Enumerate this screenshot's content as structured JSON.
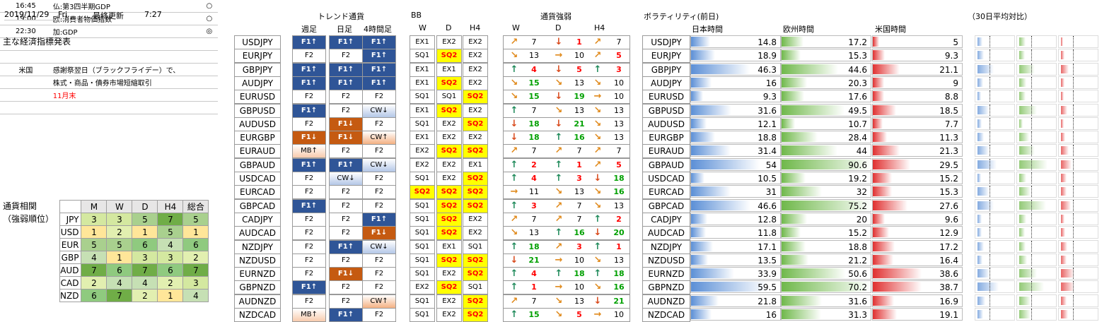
{
  "header": {
    "date": "2019/11/29",
    "weekday": "Fri.",
    "last_update_label": "最終更新",
    "last_update_time": "7:27"
  },
  "calendar": {
    "title": "主な経済指標発表",
    "rows": [
      {
        "time": "16:45",
        "text": "仏:第3四半期GDP",
        "mark": "○"
      },
      {
        "time": "19:00",
        "text": "欧:消費者物価指数",
        "mark": "○"
      },
      {
        "time": "22:30",
        "text": "加:GDP",
        "mark": "◎"
      },
      {
        "time": "",
        "text": "",
        "mark": ""
      },
      {
        "time": "",
        "text": "",
        "mark": ""
      },
      {
        "time": "米国",
        "text": "感謝祭翌日（ブラックフライデー）で、",
        "mark": ""
      },
      {
        "time": "",
        "text": "株式・商品・債券市場短縮取引",
        "mark": ""
      },
      {
        "time": "",
        "text": "11月末",
        "mark": "",
        "red": true
      },
      {
        "time": "",
        "text": "",
        "mark": ""
      }
    ]
  },
  "matrix": {
    "title1": "通貨相関",
    "title2": "（強弱順位）",
    "columns": [
      "M",
      "W",
      "D",
      "H4",
      "総合"
    ],
    "rows": [
      {
        "ccy": "JPY",
        "vals": [
          3,
          3,
          5,
          7,
          5
        ]
      },
      {
        "ccy": "USD",
        "vals": [
          1,
          2,
          1,
          5,
          1
        ]
      },
      {
        "ccy": "EUR",
        "vals": [
          5,
          5,
          6,
          4,
          6
        ]
      },
      {
        "ccy": "GBP",
        "vals": [
          4,
          1,
          3,
          3,
          2
        ]
      },
      {
        "ccy": "AUD",
        "vals": [
          7,
          6,
          7,
          6,
          7
        ]
      },
      {
        "ccy": "CAD",
        "vals": [
          2,
          4,
          4,
          2,
          3
        ]
      },
      {
        "ccy": "NZD",
        "vals": [
          6,
          7,
          2,
          1,
          4
        ]
      }
    ]
  },
  "trend_header": {
    "title": "トレンド通貨",
    "cols": [
      "週足",
      "日足",
      "4時間足"
    ]
  },
  "bb_header": {
    "title": "BB",
    "cols": [
      "W",
      "D",
      "H4"
    ]
  },
  "str_header": {
    "title": "通貨強弱",
    "cols": [
      "W",
      "D",
      "H4"
    ]
  },
  "vol_header": {
    "title": "ボラティリティ(前日)",
    "jp": "日本時間",
    "eu": "欧州時間",
    "us": "米国時間",
    "avg": "（30日平均対比）"
  },
  "rows": [
    {
      "pair": "USDJPY",
      "trend": [
        [
          "F1↑",
          "f1up"
        ],
        [
          "F1↑",
          "f1up"
        ],
        [
          "F1↑",
          "f1up"
        ]
      ],
      "bb": [
        [
          "EX1",
          ""
        ],
        [
          "EX2",
          ""
        ],
        [
          "EX2",
          ""
        ]
      ],
      "str": [
        [
          "↗",
          "o"
        ],
        [
          "7",
          ""
        ],
        [
          "↓",
          "r"
        ],
        [
          "1",
          "r"
        ],
        [
          "↗",
          "o"
        ],
        [
          "7",
          ""
        ]
      ],
      "vol": [
        14.8,
        17.2,
        5.0
      ]
    },
    {
      "pair": "EURJPY",
      "trend": [
        [
          "F2",
          ""
        ],
        [
          "F2",
          ""
        ],
        [
          "F1↑",
          "f1up"
        ]
      ],
      "bb": [
        [
          "SQ1",
          ""
        ],
        [
          "SQ2",
          "sq"
        ],
        [
          "EX2",
          ""
        ]
      ],
      "str": [
        [
          "↘",
          "o"
        ],
        [
          "13",
          ""
        ],
        [
          "→",
          "o"
        ],
        [
          "10",
          ""
        ],
        [
          "↗",
          "o"
        ],
        [
          "5",
          "r"
        ]
      ],
      "vol": [
        18.9,
        15.3,
        9.3
      ]
    },
    {
      "pair": "GBPJPY",
      "trend": [
        [
          "F1↑",
          "f1up"
        ],
        [
          "F1↑",
          "f1up"
        ],
        [
          "F1↑",
          "f1up"
        ]
      ],
      "bb": [
        [
          "EX1",
          ""
        ],
        [
          "EX1",
          ""
        ],
        [
          "EX2",
          ""
        ]
      ],
      "str": [
        [
          "↑",
          "g"
        ],
        [
          "4",
          "r"
        ],
        [
          "↓",
          "r"
        ],
        [
          "5",
          "r"
        ],
        [
          "↑",
          "g"
        ],
        [
          "3",
          "r"
        ]
      ],
      "vol": [
        46.3,
        44.6,
        21.1
      ]
    },
    {
      "pair": "AUDJPY",
      "trend": [
        [
          "F1↑",
          "f1up"
        ],
        [
          "F1↑",
          "f1up"
        ],
        [
          "F1↑",
          "f1up"
        ]
      ],
      "bb": [
        [
          "EX1",
          ""
        ],
        [
          "SQ2",
          "sq"
        ],
        [
          "EX2",
          ""
        ]
      ],
      "str": [
        [
          "↘",
          "o"
        ],
        [
          "15",
          "g"
        ],
        [
          "↘",
          "o"
        ],
        [
          "13",
          ""
        ],
        [
          "↘",
          "o"
        ],
        [
          "10",
          ""
        ]
      ],
      "vol": [
        16.0,
        20.3,
        9.0
      ]
    },
    {
      "pair": "EURUSD",
      "trend": [
        [
          "F2",
          ""
        ],
        [
          "F2",
          ""
        ],
        [
          "F2",
          ""
        ]
      ],
      "bb": [
        [
          "SQ1",
          ""
        ],
        [
          "SQ1",
          ""
        ],
        [
          "SQ2",
          "sq"
        ]
      ],
      "str": [
        [
          "↘",
          "o"
        ],
        [
          "15",
          "g"
        ],
        [
          "↓",
          "r"
        ],
        [
          "19",
          "g"
        ],
        [
          "→",
          "o"
        ],
        [
          "10",
          ""
        ]
      ],
      "vol": [
        9.3,
        17.6,
        8.8
      ]
    },
    {
      "pair": "GBPUSD",
      "trend": [
        [
          "F1↑",
          "f1up"
        ],
        [
          "F2",
          ""
        ],
        [
          "CW↓",
          "cwdn"
        ]
      ],
      "bb": [
        [
          "EX1",
          ""
        ],
        [
          "SQ2",
          "sq"
        ],
        [
          "EX2",
          ""
        ]
      ],
      "str": [
        [
          "↑",
          "g"
        ],
        [
          "7",
          ""
        ],
        [
          "↘",
          "o"
        ],
        [
          "13",
          ""
        ],
        [
          "↘",
          "o"
        ],
        [
          "13",
          ""
        ]
      ],
      "vol": [
        31.6,
        49.5,
        18.5
      ]
    },
    {
      "pair": "AUDUSD",
      "trend": [
        [
          "F2",
          ""
        ],
        [
          "F1↓",
          "f1dn"
        ],
        [
          "F2",
          ""
        ]
      ],
      "bb": [
        [
          "SQ1",
          ""
        ],
        [
          "EX2",
          ""
        ],
        [
          "SQ2",
          "sq"
        ]
      ],
      "str": [
        [
          "↓",
          "r"
        ],
        [
          "18",
          "g"
        ],
        [
          "↓",
          "r"
        ],
        [
          "21",
          "g"
        ],
        [
          "↘",
          "o"
        ],
        [
          "13",
          ""
        ]
      ],
      "vol": [
        12.1,
        10.7,
        7.7
      ]
    },
    {
      "pair": "EURGBP",
      "trend": [
        [
          "F1↓",
          "f1dn"
        ],
        [
          "F1↓",
          "f1dn"
        ],
        [
          "CW↑",
          "cwup"
        ]
      ],
      "bb": [
        [
          "EX1",
          ""
        ],
        [
          "EX2",
          ""
        ],
        [
          "EX2",
          ""
        ]
      ],
      "str": [
        [
          "↓",
          "r"
        ],
        [
          "18",
          "g"
        ],
        [
          "↑",
          "g"
        ],
        [
          "16",
          "g"
        ],
        [
          "↘",
          "o"
        ],
        [
          "13",
          ""
        ]
      ],
      "vol": [
        18.8,
        28.4,
        11.3
      ]
    },
    {
      "pair": "EURAUD",
      "trend": [
        [
          "MB↑",
          "mbup"
        ],
        [
          "F2",
          ""
        ],
        [
          "F2",
          ""
        ]
      ],
      "bb": [
        [
          "EX2",
          ""
        ],
        [
          "SQ2",
          "sq"
        ],
        [
          "SQ2",
          "sq"
        ]
      ],
      "str": [
        [
          "↗",
          "o"
        ],
        [
          "7",
          ""
        ],
        [
          "↗",
          "o"
        ],
        [
          "7",
          ""
        ],
        [
          "↗",
          "o"
        ],
        [
          "7",
          ""
        ]
      ],
      "vol": [
        31.4,
        44.0,
        21.3
      ]
    },
    {
      "pair": "GBPAUD",
      "trend": [
        [
          "F1↑",
          "f1up"
        ],
        [
          "F1↑",
          "f1up"
        ],
        [
          "CW↓",
          "cwdn"
        ]
      ],
      "bb": [
        [
          "EX2",
          ""
        ],
        [
          "EX2",
          ""
        ],
        [
          "EX1",
          ""
        ]
      ],
      "str": [
        [
          "↑",
          "g"
        ],
        [
          "2",
          "r"
        ],
        [
          "↑",
          "g"
        ],
        [
          "1",
          "r"
        ],
        [
          "↗",
          "o"
        ],
        [
          "5",
          "r"
        ]
      ],
      "vol": [
        54.0,
        90.6,
        29.5
      ]
    },
    {
      "pair": "USDCAD",
      "trend": [
        [
          "F2",
          ""
        ],
        [
          "CW↓",
          "cwdn"
        ],
        [
          "F2",
          ""
        ]
      ],
      "bb": [
        [
          "SQ1",
          ""
        ],
        [
          "EX2",
          ""
        ],
        [
          "SQ2",
          "sq"
        ]
      ],
      "str": [
        [
          "↑",
          "g"
        ],
        [
          "4",
          "r"
        ],
        [
          "↑",
          "g"
        ],
        [
          "3",
          "r"
        ],
        [
          "↓",
          "r"
        ],
        [
          "18",
          "g"
        ]
      ],
      "vol": [
        10.5,
        19.2,
        15.2
      ]
    },
    {
      "pair": "EURCAD",
      "trend": [
        [
          "F2",
          ""
        ],
        [
          "F2",
          ""
        ],
        [
          "F2",
          ""
        ]
      ],
      "bb": [
        [
          "SQ2",
          "sq"
        ],
        [
          "SQ2",
          "sq"
        ],
        [
          "SQ2",
          "sq"
        ]
      ],
      "str": [
        [
          "→",
          "o"
        ],
        [
          "11",
          ""
        ],
        [
          "↘",
          "o"
        ],
        [
          "13",
          ""
        ],
        [
          "↘",
          "o"
        ],
        [
          "16",
          "g"
        ]
      ],
      "vol": [
        31.0,
        32.0,
        15.3
      ]
    },
    {
      "pair": "GBPCAD",
      "trend": [
        [
          "F1↑",
          "f1up"
        ],
        [
          "F2",
          ""
        ],
        [
          "F2",
          ""
        ]
      ],
      "bb": [
        [
          "SQ1",
          ""
        ],
        [
          "SQ2",
          "sq"
        ],
        [
          "SQ2",
          "sq"
        ]
      ],
      "str": [
        [
          "↑",
          "g"
        ],
        [
          "3",
          "r"
        ],
        [
          "↗",
          "o"
        ],
        [
          "7",
          ""
        ],
        [
          "↘",
          "o"
        ],
        [
          "13",
          ""
        ]
      ],
      "vol": [
        46.6,
        75.2,
        27.6
      ]
    },
    {
      "pair": "CADJPY",
      "trend": [
        [
          "F2",
          ""
        ],
        [
          "F2",
          ""
        ],
        [
          "F1↑",
          "f1up"
        ]
      ],
      "bb": [
        [
          "SQ1",
          ""
        ],
        [
          "SQ2",
          "sq"
        ],
        [
          "EX2",
          ""
        ]
      ],
      "str": [
        [
          "↗",
          "o"
        ],
        [
          "7",
          ""
        ],
        [
          "↗",
          "o"
        ],
        [
          "7",
          ""
        ],
        [
          "↑",
          "g"
        ],
        [
          "2",
          "r"
        ]
      ],
      "vol": [
        12.8,
        20.0,
        9.6
      ]
    },
    {
      "pair": "AUDCAD",
      "trend": [
        [
          "F2",
          ""
        ],
        [
          "F2",
          ""
        ],
        [
          "F1↓",
          "f1dn"
        ]
      ],
      "bb": [
        [
          "SQ1",
          ""
        ],
        [
          "SQ2",
          "sq"
        ],
        [
          "EX2",
          ""
        ]
      ],
      "str": [
        [
          "↘",
          "o"
        ],
        [
          "13",
          ""
        ],
        [
          "↑",
          "g"
        ],
        [
          "16",
          "g"
        ],
        [
          "↓",
          "r"
        ],
        [
          "20",
          "g"
        ]
      ],
      "vol": [
        11.8,
        15.2,
        12.9
      ]
    },
    {
      "pair": "NZDJPY",
      "trend": [
        [
          "F2",
          ""
        ],
        [
          "F1↑",
          "f1up"
        ],
        [
          "CW↓",
          "cwdn"
        ]
      ],
      "bb": [
        [
          "SQ1",
          ""
        ],
        [
          "EX1",
          ""
        ],
        [
          "SQ1",
          ""
        ]
      ],
      "str": [
        [
          "↑",
          "g"
        ],
        [
          "18",
          "g"
        ],
        [
          "↗",
          "o"
        ],
        [
          "3",
          "r"
        ],
        [
          "↑",
          "g"
        ],
        [
          "1",
          "r"
        ]
      ],
      "vol": [
        17.1,
        18.8,
        17.2
      ]
    },
    {
      "pair": "NZDUSD",
      "trend": [
        [
          "F2",
          ""
        ],
        [
          "F2",
          ""
        ],
        [
          "F2",
          ""
        ]
      ],
      "bb": [
        [
          "SQ1",
          ""
        ],
        [
          "SQ2",
          "sq"
        ],
        [
          "SQ2",
          "sq"
        ]
      ],
      "str": [
        [
          "↓",
          "r"
        ],
        [
          "21",
          "g"
        ],
        [
          "→",
          "o"
        ],
        [
          "10",
          ""
        ],
        [
          "↘",
          "o"
        ],
        [
          "13",
          ""
        ]
      ],
      "vol": [
        13.5,
        21.2,
        16.4
      ]
    },
    {
      "pair": "EURNZD",
      "trend": [
        [
          "F2",
          ""
        ],
        [
          "F1↓",
          "f1dn"
        ],
        [
          "F2",
          ""
        ]
      ],
      "bb": [
        [
          "SQ1",
          ""
        ],
        [
          "EX2",
          ""
        ],
        [
          "SQ2",
          "sq"
        ]
      ],
      "str": [
        [
          "↑",
          "g"
        ],
        [
          "4",
          "r"
        ],
        [
          "↑",
          "g"
        ],
        [
          "18",
          "g"
        ],
        [
          "↑",
          "g"
        ],
        [
          "18",
          "g"
        ]
      ],
      "vol": [
        33.9,
        50.6,
        38.6
      ]
    },
    {
      "pair": "GBPNZD",
      "trend": [
        [
          "F1↑",
          "f1up"
        ],
        [
          "F2",
          ""
        ],
        [
          "F2",
          ""
        ]
      ],
      "bb": [
        [
          "EX2",
          ""
        ],
        [
          "SQ2",
          "sq"
        ],
        [
          "SQ1",
          ""
        ]
      ],
      "str": [
        [
          "↑",
          "g"
        ],
        [
          "1",
          "r"
        ],
        [
          "→",
          "o"
        ],
        [
          "10",
          ""
        ],
        [
          "↘",
          "o"
        ],
        [
          "16",
          "g"
        ]
      ],
      "vol": [
        59.5,
        70.2,
        38.7
      ]
    },
    {
      "pair": "AUDNZD",
      "trend": [
        [
          "F2",
          ""
        ],
        [
          "F2",
          ""
        ],
        [
          "CW↑",
          "cwup"
        ]
      ],
      "bb": [
        [
          "SQ1",
          ""
        ],
        [
          "EX2",
          ""
        ],
        [
          "SQ2",
          "sq"
        ]
      ],
      "str": [
        [
          "↗",
          "o"
        ],
        [
          "7",
          ""
        ],
        [
          "↘",
          "o"
        ],
        [
          "13",
          ""
        ],
        [
          "↓",
          "r"
        ],
        [
          "21",
          "g"
        ]
      ],
      "vol": [
        21.8,
        31.6,
        16.9
      ]
    },
    {
      "pair": "NZDCAD",
      "trend": [
        [
          "MB↑",
          "mbup"
        ],
        [
          "F1↑",
          "f1up"
        ],
        [
          "F2",
          ""
        ]
      ],
      "bb": [
        [
          "SQ1",
          ""
        ],
        [
          "EX2",
          ""
        ],
        [
          "SQ2",
          "sq"
        ]
      ],
      "str": [
        [
          "↑",
          "g"
        ],
        [
          "15",
          "g"
        ],
        [
          "↘",
          "o"
        ],
        [
          "5",
          "r"
        ],
        [
          "→",
          "o"
        ],
        [
          "10",
          ""
        ]
      ],
      "vol": [
        16.0,
        31.3,
        19.1
      ]
    }
  ],
  "colors": {
    "jp": "#5b8fd6",
    "eu": "#6fb84a",
    "us": "#e03030"
  }
}
